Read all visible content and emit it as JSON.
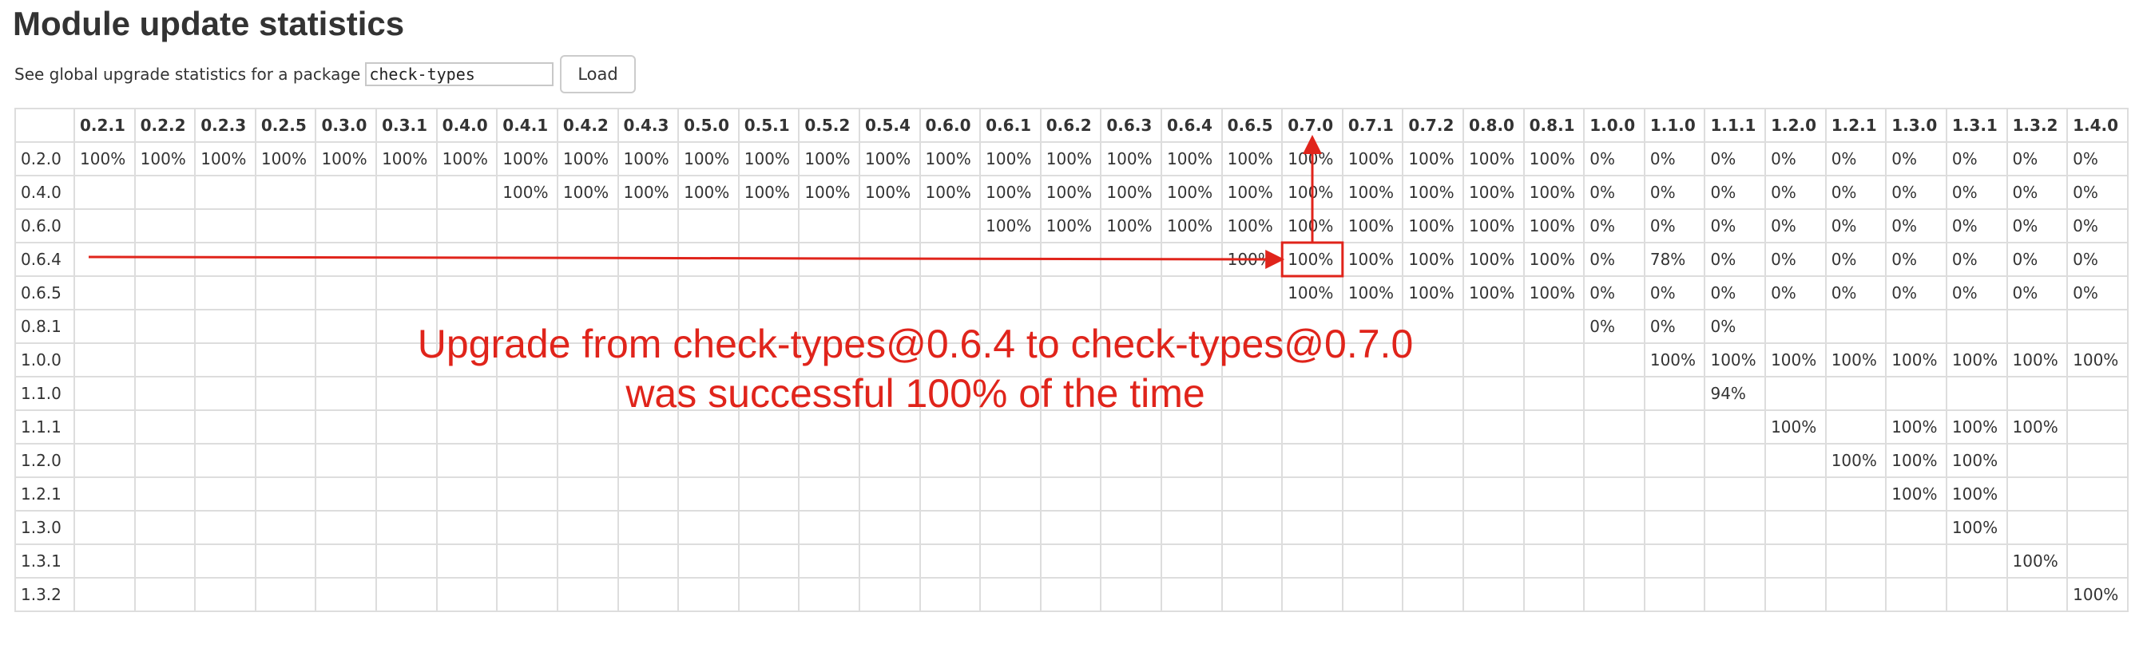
{
  "page": {
    "title": "Module update statistics"
  },
  "search": {
    "label": "See global upgrade statistics for a package",
    "value": "check-types",
    "button_label": "Load"
  },
  "table": {
    "columns": [
      "0.2.1",
      "0.2.2",
      "0.2.3",
      "0.2.5",
      "0.3.0",
      "0.3.1",
      "0.4.0",
      "0.4.1",
      "0.4.2",
      "0.4.3",
      "0.5.0",
      "0.5.1",
      "0.5.2",
      "0.5.4",
      "0.6.0",
      "0.6.1",
      "0.6.2",
      "0.6.3",
      "0.6.4",
      "0.6.5",
      "0.7.0",
      "0.7.1",
      "0.7.2",
      "0.8.0",
      "0.8.1",
      "1.0.0",
      "1.1.0",
      "1.1.1",
      "1.2.0",
      "1.2.1",
      "1.3.0",
      "1.3.1",
      "1.3.2",
      "1.4.0"
    ],
    "rows": [
      {
        "from": "0.2.0",
        "cells": [
          "100%",
          "100%",
          "100%",
          "100%",
          "100%",
          "100%",
          "100%",
          "100%",
          "100%",
          "100%",
          "100%",
          "100%",
          "100%",
          "100%",
          "100%",
          "100%",
          "100%",
          "100%",
          "100%",
          "100%",
          "100%",
          "100%",
          "100%",
          "100%",
          "100%",
          "0%",
          "0%",
          "0%",
          "0%",
          "0%",
          "0%",
          "0%",
          "0%",
          "0%"
        ]
      },
      {
        "from": "0.4.0",
        "cells": [
          "",
          "",
          "",
          "",
          "",
          "",
          "",
          "100%",
          "100%",
          "100%",
          "100%",
          "100%",
          "100%",
          "100%",
          "100%",
          "100%",
          "100%",
          "100%",
          "100%",
          "100%",
          "100%",
          "100%",
          "100%",
          "100%",
          "100%",
          "0%",
          "0%",
          "0%",
          "0%",
          "0%",
          "0%",
          "0%",
          "0%",
          "0%"
        ]
      },
      {
        "from": "0.6.0",
        "cells": [
          "",
          "",
          "",
          "",
          "",
          "",
          "",
          "",
          "",
          "",
          "",
          "",
          "",
          "",
          "",
          "100%",
          "100%",
          "100%",
          "100%",
          "100%",
          "100%",
          "100%",
          "100%",
          "100%",
          "100%",
          "0%",
          "0%",
          "0%",
          "0%",
          "0%",
          "0%",
          "0%",
          "0%",
          "0%"
        ]
      },
      {
        "from": "0.6.4",
        "cells": [
          "",
          "",
          "",
          "",
          "",
          "",
          "",
          "",
          "",
          "",
          "",
          "",
          "",
          "",
          "",
          "",
          "",
          "",
          "",
          "100%",
          "100%",
          "100%",
          "100%",
          "100%",
          "100%",
          "0%",
          "78%",
          "0%",
          "0%",
          "0%",
          "0%",
          "0%",
          "0%",
          "0%"
        ]
      },
      {
        "from": "0.6.5",
        "cells": [
          "",
          "",
          "",
          "",
          "",
          "",
          "",
          "",
          "",
          "",
          "",
          "",
          "",
          "",
          "",
          "",
          "",
          "",
          "",
          "",
          "100%",
          "100%",
          "100%",
          "100%",
          "100%",
          "0%",
          "0%",
          "0%",
          "0%",
          "0%",
          "0%",
          "0%",
          "0%",
          "0%"
        ]
      },
      {
        "from": "0.8.1",
        "cells": [
          "",
          "",
          "",
          "",
          "",
          "",
          "",
          "",
          "",
          "",
          "",
          "",
          "",
          "",
          "",
          "",
          "",
          "",
          "",
          "",
          "",
          "",
          "",
          "",
          "",
          "0%",
          "0%",
          "0%",
          "",
          "",
          "",
          "",
          "",
          ""
        ]
      },
      {
        "from": "1.0.0",
        "cells": [
          "",
          "",
          "",
          "",
          "",
          "",
          "",
          "",
          "",
          "",
          "",
          "",
          "",
          "",
          "",
          "",
          "",
          "",
          "",
          "",
          "",
          "",
          "",
          "",
          "",
          "",
          "100%",
          "100%",
          "100%",
          "100%",
          "100%",
          "100%",
          "100%",
          "100%"
        ]
      },
      {
        "from": "1.1.0",
        "cells": [
          "",
          "",
          "",
          "",
          "",
          "",
          "",
          "",
          "",
          "",
          "",
          "",
          "",
          "",
          "",
          "",
          "",
          "",
          "",
          "",
          "",
          "",
          "",
          "",
          "",
          "",
          "",
          "94%",
          "",
          "",
          "",
          "",
          "",
          ""
        ]
      },
      {
        "from": "1.1.1",
        "cells": [
          "",
          "",
          "",
          "",
          "",
          "",
          "",
          "",
          "",
          "",
          "",
          "",
          "",
          "",
          "",
          "",
          "",
          "",
          "",
          "",
          "",
          "",
          "",
          "",
          "",
          "",
          "",
          "",
          "100%",
          "",
          "100%",
          "100%",
          "100%",
          ""
        ]
      },
      {
        "from": "1.2.0",
        "cells": [
          "",
          "",
          "",
          "",
          "",
          "",
          "",
          "",
          "",
          "",
          "",
          "",
          "",
          "",
          "",
          "",
          "",
          "",
          "",
          "",
          "",
          "",
          "",
          "",
          "",
          "",
          "",
          "",
          "",
          "100%",
          "100%",
          "100%",
          "",
          ""
        ]
      },
      {
        "from": "1.2.1",
        "cells": [
          "",
          "",
          "",
          "",
          "",
          "",
          "",
          "",
          "",
          "",
          "",
          "",
          "",
          "",
          "",
          "",
          "",
          "",
          "",
          "",
          "",
          "",
          "",
          "",
          "",
          "",
          "",
          "",
          "",
          "",
          "100%",
          "100%",
          "",
          ""
        ]
      },
      {
        "from": "1.3.0",
        "cells": [
          "",
          "",
          "",
          "",
          "",
          "",
          "",
          "",
          "",
          "",
          "",
          "",
          "",
          "",
          "",
          "",
          "",
          "",
          "",
          "",
          "",
          "",
          "",
          "",
          "",
          "",
          "",
          "",
          "",
          "",
          "",
          "100%",
          "",
          ""
        ]
      },
      {
        "from": "1.3.1",
        "cells": [
          "",
          "",
          "",
          "",
          "",
          "",
          "",
          "",
          "",
          "",
          "",
          "",
          "",
          "",
          "",
          "",
          "",
          "",
          "",
          "",
          "",
          "",
          "",
          "",
          "",
          "",
          "",
          "",
          "",
          "",
          "",
          "",
          "100%",
          ""
        ]
      },
      {
        "from": "1.3.2",
        "cells": [
          "",
          "",
          "",
          "",
          "",
          "",
          "",
          "",
          "",
          "",
          "",
          "",
          "",
          "",
          "",
          "",
          "",
          "",
          "",
          "",
          "",
          "",
          "",
          "",
          "",
          "",
          "",
          "",
          "",
          "",
          "",
          "",
          "",
          "100%"
        ]
      }
    ]
  },
  "annotation": {
    "line1": "Upgrade from check-types@0.6.4 to check-types@0.7.0",
    "line2": "was successful 100% of the time",
    "highlight_row": "0.6.4",
    "highlight_column": "0.7.0",
    "color": "#e0241b"
  }
}
